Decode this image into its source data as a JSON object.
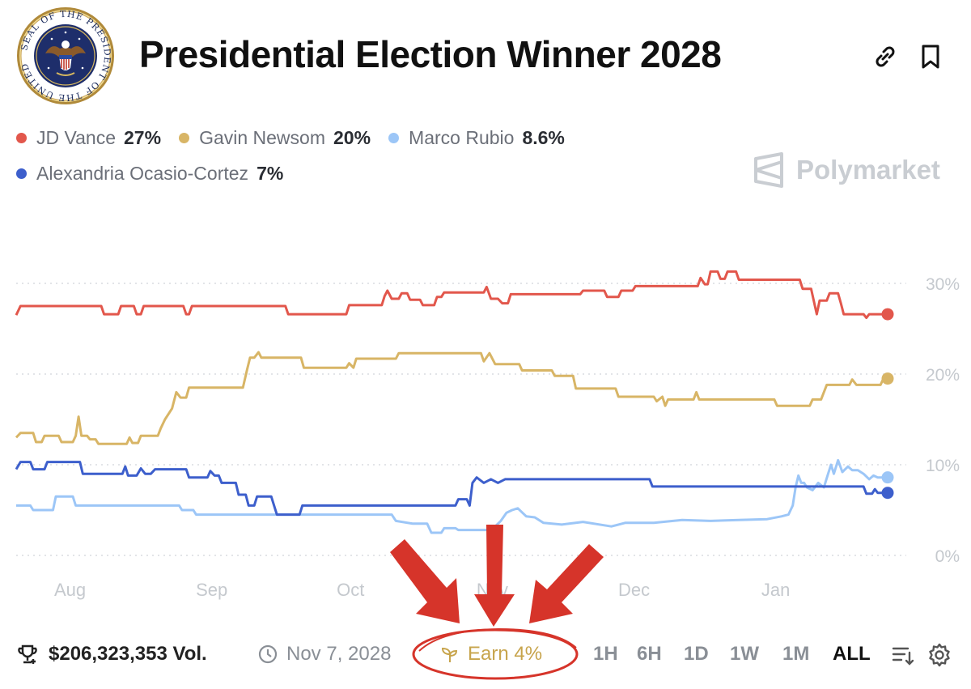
{
  "header": {
    "title": "Presidential Election Winner 2028",
    "seal_text": "SEAL OF THE PRESIDENT OF THE UNITED STATES"
  },
  "brand": {
    "name": "Polymarket"
  },
  "legend": [
    {
      "name": "JD Vance",
      "value": "27%",
      "color": "#e2574c"
    },
    {
      "name": "Gavin Newsom",
      "value": "20%",
      "color": "#d8b566"
    },
    {
      "name": "Marco Rubio",
      "value": "8.6%",
      "color": "#9cc6f7"
    },
    {
      "name": "Alexandria Ocasio-Cortez",
      "value": "7%",
      "color": "#3d5fcc"
    }
  ],
  "footer": {
    "volume": "$206,323,353 Vol.",
    "date": "Nov 7, 2028",
    "earn": "Earn 4%",
    "timeframes": [
      "1H",
      "6H",
      "1D",
      "1W",
      "1M",
      "ALL"
    ],
    "active_timeframe": "ALL"
  },
  "colors": {
    "annotation": "#d6342a",
    "grid": "#d9dce0",
    "axis_text": "#c5c9ce"
  },
  "chart_data": {
    "type": "line",
    "title": "Presidential Election Winner 2028",
    "xlabel": "",
    "ylabel": "",
    "x_range": [
      0,
      6.0
    ],
    "ylim": [
      0,
      30
    ],
    "y_ticks": [
      0,
      10,
      20,
      30
    ],
    "y_tick_labels": [
      "0%",
      "10%",
      "20%",
      "30%"
    ],
    "grid": true,
    "x_tick_positions": [
      0.38,
      1.38,
      2.36,
      3.36,
      4.36,
      5.36
    ],
    "x_tick_labels": [
      "Aug",
      "Sep",
      "Oct",
      "Nov",
      "Dec",
      "Jan"
    ],
    "series": [
      {
        "name": "JD Vance",
        "color": "#e2574c",
        "points": [
          [
            0,
            26.5
          ],
          [
            0.03,
            27.5
          ],
          [
            0.6,
            27.5
          ],
          [
            0.62,
            26.6
          ],
          [
            0.72,
            26.6
          ],
          [
            0.74,
            27.5
          ],
          [
            0.83,
            27.5
          ],
          [
            0.85,
            26.6
          ],
          [
            0.88,
            26.6
          ],
          [
            0.9,
            27.5
          ],
          [
            1.18,
            27.5
          ],
          [
            1.2,
            26.6
          ],
          [
            1.22,
            26.6
          ],
          [
            1.24,
            27.5
          ],
          [
            1.9,
            27.5
          ],
          [
            1.92,
            26.6
          ],
          [
            2.33,
            26.6
          ],
          [
            2.35,
            27.6
          ],
          [
            2.58,
            27.6
          ],
          [
            2.6,
            28.6
          ],
          [
            2.62,
            29.2
          ],
          [
            2.65,
            28.3
          ],
          [
            2.7,
            28.3
          ],
          [
            2.72,
            28.9
          ],
          [
            2.76,
            28.9
          ],
          [
            2.78,
            28.2
          ],
          [
            2.85,
            28.2
          ],
          [
            2.87,
            27.6
          ],
          [
            2.95,
            27.6
          ],
          [
            2.97,
            28.5
          ],
          [
            3.0,
            28.5
          ],
          [
            3.02,
            29.0
          ],
          [
            3.3,
            29.0
          ],
          [
            3.32,
            29.6
          ],
          [
            3.35,
            28.3
          ],
          [
            3.4,
            28.3
          ],
          [
            3.43,
            27.8
          ],
          [
            3.47,
            27.8
          ],
          [
            3.49,
            28.8
          ],
          [
            3.73,
            28.8
          ],
          [
            3.75,
            28.8
          ],
          [
            3.98,
            28.8
          ],
          [
            4.0,
            29.2
          ],
          [
            4.15,
            29.2
          ],
          [
            4.17,
            28.5
          ],
          [
            4.25,
            28.5
          ],
          [
            4.27,
            29.2
          ],
          [
            4.35,
            29.2
          ],
          [
            4.37,
            29.7
          ],
          [
            4.81,
            29.7
          ],
          [
            4.83,
            30.6
          ],
          [
            4.86,
            29.9
          ],
          [
            4.88,
            29.9
          ],
          [
            4.9,
            31.3
          ],
          [
            4.95,
            31.3
          ],
          [
            4.97,
            30.5
          ],
          [
            5.0,
            30.5
          ],
          [
            5.02,
            31.3
          ],
          [
            5.08,
            31.3
          ],
          [
            5.1,
            30.4
          ],
          [
            5.53,
            30.4
          ],
          [
            5.55,
            29.4
          ],
          [
            5.61,
            29.4
          ],
          [
            5.63,
            28.0
          ],
          [
            5.65,
            26.6
          ],
          [
            5.67,
            28.1
          ],
          [
            5.72,
            28.1
          ],
          [
            5.74,
            28.9
          ],
          [
            5.8,
            28.9
          ],
          [
            5.82,
            27.8
          ],
          [
            5.84,
            26.6
          ],
          [
            5.98,
            26.6
          ],
          [
            6.0,
            26.2
          ],
          [
            6.02,
            26.6
          ],
          [
            6.15,
            26.6
          ]
        ]
      },
      {
        "name": "Gavin Newsom",
        "color": "#d8b566",
        "points": [
          [
            0,
            13.0
          ],
          [
            0.03,
            13.5
          ],
          [
            0.12,
            13.5
          ],
          [
            0.14,
            12.5
          ],
          [
            0.18,
            12.5
          ],
          [
            0.2,
            13.2
          ],
          [
            0.3,
            13.2
          ],
          [
            0.32,
            12.5
          ],
          [
            0.4,
            12.5
          ],
          [
            0.42,
            13.2
          ],
          [
            0.44,
            15.3
          ],
          [
            0.46,
            13.2
          ],
          [
            0.5,
            13.2
          ],
          [
            0.52,
            12.8
          ],
          [
            0.56,
            12.8
          ],
          [
            0.58,
            12.3
          ],
          [
            0.78,
            12.3
          ],
          [
            0.8,
            13.0
          ],
          [
            0.82,
            12.4
          ],
          [
            0.86,
            12.4
          ],
          [
            0.88,
            13.2
          ],
          [
            1.0,
            13.2
          ],
          [
            1.02,
            14.0
          ],
          [
            1.05,
            15.0
          ],
          [
            1.1,
            16.2
          ],
          [
            1.13,
            18.0
          ],
          [
            1.16,
            17.4
          ],
          [
            1.2,
            17.4
          ],
          [
            1.22,
            18.5
          ],
          [
            1.6,
            18.5
          ],
          [
            1.63,
            20.5
          ],
          [
            1.65,
            21.8
          ],
          [
            1.68,
            21.8
          ],
          [
            1.71,
            22.4
          ],
          [
            1.73,
            21.8
          ],
          [
            2.01,
            21.8
          ],
          [
            2.03,
            20.7
          ],
          [
            2.33,
            20.7
          ],
          [
            2.35,
            21.2
          ],
          [
            2.38,
            20.7
          ],
          [
            2.4,
            21.7
          ],
          [
            2.68,
            21.7
          ],
          [
            2.7,
            22.3
          ],
          [
            3.28,
            22.3
          ],
          [
            3.3,
            21.4
          ],
          [
            3.34,
            22.3
          ],
          [
            3.38,
            21.1
          ],
          [
            3.55,
            21.1
          ],
          [
            3.57,
            20.4
          ],
          [
            3.78,
            20.4
          ],
          [
            3.8,
            19.8
          ],
          [
            3.93,
            19.8
          ],
          [
            3.95,
            18.4
          ],
          [
            4.23,
            18.4
          ],
          [
            4.25,
            17.5
          ],
          [
            4.5,
            17.5
          ],
          [
            4.52,
            17.0
          ],
          [
            4.56,
            17.5
          ],
          [
            4.58,
            16.5
          ],
          [
            4.6,
            17.2
          ],
          [
            4.78,
            17.2
          ],
          [
            4.8,
            18.0
          ],
          [
            4.82,
            17.2
          ],
          [
            5.35,
            17.2
          ],
          [
            5.37,
            16.5
          ],
          [
            5.6,
            16.5
          ],
          [
            5.62,
            17.2
          ],
          [
            5.68,
            17.2
          ],
          [
            5.7,
            18.0
          ],
          [
            5.72,
            18.8
          ],
          [
            5.88,
            18.8
          ],
          [
            5.9,
            19.4
          ],
          [
            5.93,
            18.8
          ],
          [
            6.1,
            18.8
          ],
          [
            6.12,
            19.5
          ],
          [
            6.15,
            19.5
          ]
        ]
      },
      {
        "name": "Marco Rubio",
        "color": "#9cc6f7",
        "points": [
          [
            0,
            5.5
          ],
          [
            0.1,
            5.5
          ],
          [
            0.12,
            5.0
          ],
          [
            0.26,
            5.0
          ],
          [
            0.28,
            6.5
          ],
          [
            0.4,
            6.5
          ],
          [
            0.42,
            5.5
          ],
          [
            1.15,
            5.5
          ],
          [
            1.17,
            5.0
          ],
          [
            1.25,
            5.0
          ],
          [
            1.27,
            4.5
          ],
          [
            2.65,
            4.5
          ],
          [
            2.68,
            3.8
          ],
          [
            2.8,
            3.5
          ],
          [
            2.9,
            3.5
          ],
          [
            2.93,
            2.5
          ],
          [
            3.0,
            2.5
          ],
          [
            3.02,
            3.0
          ],
          [
            3.1,
            3.0
          ],
          [
            3.12,
            2.8
          ],
          [
            3.35,
            2.8
          ],
          [
            3.38,
            3.2
          ],
          [
            3.42,
            3.8
          ],
          [
            3.46,
            4.7
          ],
          [
            3.5,
            5.0
          ],
          [
            3.54,
            5.2
          ],
          [
            3.6,
            4.3
          ],
          [
            3.66,
            4.2
          ],
          [
            3.72,
            3.6
          ],
          [
            3.85,
            3.4
          ],
          [
            4.0,
            3.7
          ],
          [
            4.2,
            3.2
          ],
          [
            4.3,
            3.6
          ],
          [
            4.5,
            3.6
          ],
          [
            4.7,
            3.9
          ],
          [
            4.9,
            3.8
          ],
          [
            5.1,
            3.9
          ],
          [
            5.3,
            4.0
          ],
          [
            5.4,
            4.3
          ],
          [
            5.45,
            4.5
          ],
          [
            5.48,
            5.5
          ],
          [
            5.5,
            7.5
          ],
          [
            5.52,
            8.8
          ],
          [
            5.54,
            8.0
          ],
          [
            5.56,
            8.0
          ],
          [
            5.58,
            7.5
          ],
          [
            5.62,
            7.2
          ],
          [
            5.66,
            8.0
          ],
          [
            5.7,
            7.5
          ],
          [
            5.73,
            9.0
          ],
          [
            5.75,
            10.0
          ],
          [
            5.77,
            9.0
          ],
          [
            5.8,
            10.5
          ],
          [
            5.83,
            9.2
          ],
          [
            5.87,
            9.8
          ],
          [
            5.9,
            9.4
          ],
          [
            5.94,
            9.4
          ],
          [
            5.98,
            9.0
          ],
          [
            6.02,
            8.4
          ],
          [
            6.05,
            8.8
          ],
          [
            6.08,
            8.6
          ],
          [
            6.15,
            8.6
          ]
        ]
      },
      {
        "name": "Alexandria Ocasio-Cortez",
        "color": "#3d5fcc",
        "points": [
          [
            0,
            9.5
          ],
          [
            0.03,
            10.3
          ],
          [
            0.1,
            10.3
          ],
          [
            0.12,
            9.5
          ],
          [
            0.2,
            9.5
          ],
          [
            0.22,
            10.3
          ],
          [
            0.45,
            10.3
          ],
          [
            0.47,
            9.0
          ],
          [
            0.75,
            9.0
          ],
          [
            0.77,
            9.8
          ],
          [
            0.79,
            8.8
          ],
          [
            0.85,
            8.8
          ],
          [
            0.88,
            9.6
          ],
          [
            0.91,
            9.0
          ],
          [
            0.95,
            9.0
          ],
          [
            0.98,
            9.5
          ],
          [
            1.2,
            9.5
          ],
          [
            1.22,
            8.6
          ],
          [
            1.35,
            8.6
          ],
          [
            1.37,
            9.3
          ],
          [
            1.4,
            8.8
          ],
          [
            1.43,
            8.8
          ],
          [
            1.45,
            8.0
          ],
          [
            1.55,
            8.0
          ],
          [
            1.57,
            6.7
          ],
          [
            1.62,
            6.7
          ],
          [
            1.64,
            5.5
          ],
          [
            1.68,
            5.5
          ],
          [
            1.7,
            6.5
          ],
          [
            1.8,
            6.5
          ],
          [
            1.82,
            5.5
          ],
          [
            1.84,
            4.5
          ],
          [
            2.0,
            4.5
          ],
          [
            2.02,
            5.5
          ],
          [
            3.1,
            5.5
          ],
          [
            3.12,
            6.2
          ],
          [
            3.18,
            6.2
          ],
          [
            3.2,
            5.5
          ],
          [
            3.22,
            8.0
          ],
          [
            3.25,
            8.6
          ],
          [
            3.3,
            8.0
          ],
          [
            3.35,
            8.4
          ],
          [
            3.4,
            8.0
          ],
          [
            3.45,
            8.4
          ],
          [
            4.47,
            8.4
          ],
          [
            4.49,
            7.6
          ],
          [
            5.98,
            7.6
          ],
          [
            6.0,
            6.8
          ],
          [
            6.04,
            6.8
          ],
          [
            6.06,
            7.3
          ],
          [
            6.08,
            6.9
          ],
          [
            6.15,
            6.9
          ]
        ]
      }
    ]
  }
}
